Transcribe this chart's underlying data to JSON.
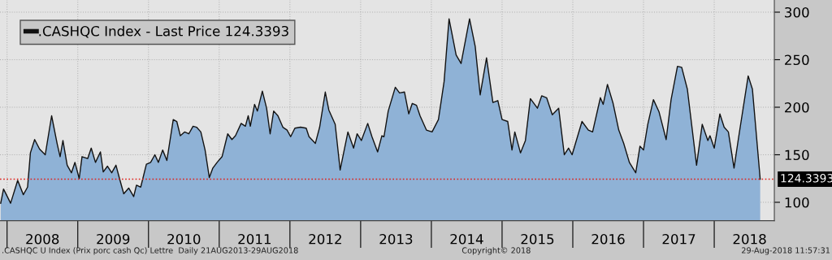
{
  "chart_data": {
    "type": "area",
    "x": [
      2007.91,
      2007.95,
      2008.05,
      2008.15,
      2008.23,
      2008.29,
      2008.33,
      2008.39,
      2008.46,
      2008.54,
      2008.63,
      2008.71,
      2008.75,
      2008.79,
      2008.85,
      2008.91,
      2008.96,
      2009.02,
      2009.06,
      2009.14,
      2009.19,
      2009.25,
      2009.32,
      2009.36,
      2009.42,
      2009.48,
      2009.54,
      2009.59,
      2009.65,
      2009.72,
      2009.79,
      2009.83,
      2009.89,
      2009.97,
      2010.03,
      2010.09,
      2010.14,
      2010.2,
      2010.26,
      2010.35,
      2010.4,
      2010.45,
      2010.51,
      2010.57,
      2010.63,
      2010.68,
      2010.74,
      2010.8,
      2010.86,
      2010.91,
      2010.97,
      2011.04,
      2011.12,
      2011.18,
      2011.23,
      2011.31,
      2011.37,
      2011.41,
      2011.44,
      2011.5,
      2011.54,
      2011.61,
      2011.67,
      2011.72,
      2011.77,
      2011.83,
      2011.9,
      2011.96,
      2012.01,
      2012.07,
      2012.15,
      2012.23,
      2012.27,
      2012.36,
      2012.42,
      2012.5,
      2012.55,
      2012.64,
      2012.71,
      2012.82,
      2012.9,
      2012.95,
      2013.01,
      2013.1,
      2013.16,
      2013.24,
      2013.3,
      2013.33,
      2013.39,
      2013.49,
      2013.55,
      2013.62,
      2013.68,
      2013.73,
      2013.79,
      2013.84,
      2013.93,
      2014.01,
      2014.1,
      2014.18,
      2014.25,
      2014.35,
      2014.42,
      2014.54,
      2014.62,
      2014.69,
      2014.78,
      2014.87,
      2014.94,
      2015.0,
      2015.08,
      2015.14,
      2015.18,
      2015.26,
      2015.33,
      2015.4,
      2015.5,
      2015.56,
      2015.63,
      2015.71,
      2015.8,
      2015.88,
      2015.94,
      2015.99,
      2016.13,
      2016.22,
      2016.28,
      2016.39,
      2016.43,
      2016.49,
      2016.57,
      2016.65,
      2016.72,
      2016.8,
      2016.89,
      2016.95,
      2017.0,
      2017.06,
      2017.14,
      2017.22,
      2017.32,
      2017.39,
      2017.48,
      2017.54,
      2017.62,
      2017.75,
      2017.83,
      2017.91,
      2017.94,
      2018.0,
      2018.08,
      2018.14,
      2018.2,
      2018.28,
      2018.34,
      2018.48,
      2018.54,
      2018.65
    ],
    "series": [
      {
        "name": ".CASHQC Index - Last Price 124.3393",
        "color": "#8fb2d6",
        "values": [
          99,
          114,
          99,
          123,
          108,
          116,
          152,
          166,
          156,
          150,
          191,
          161,
          148,
          165,
          139,
          131,
          142,
          125,
          148,
          146,
          157,
          142,
          153,
          132,
          138,
          131,
          139,
          125,
          109,
          115,
          106,
          118,
          116,
          140,
          142,
          150,
          142,
          155,
          144,
          187,
          185,
          170,
          174,
          172,
          180,
          179,
          174,
          155,
          126,
          136,
          142,
          148,
          172,
          166,
          170,
          183,
          180,
          191,
          180,
          203,
          196,
          217,
          199,
          172,
          196,
          191,
          179,
          176,
          169,
          178,
          179,
          178,
          169,
          162,
          179,
          216,
          197,
          182,
          134,
          174,
          157,
          172,
          165,
          183,
          169,
          153,
          170,
          169,
          196,
          221,
          215,
          216,
          193,
          204,
          202,
          191,
          176,
          174,
          187,
          227,
          293,
          255,
          246,
          293,
          264,
          213,
          252,
          205,
          207,
          187,
          185,
          155,
          174,
          152,
          165,
          209,
          199,
          212,
          210,
          192,
          199,
          150,
          157,
          150,
          185,
          176,
          174,
          210,
          203,
          224,
          204,
          176,
          162,
          142,
          131,
          159,
          155,
          182,
          208,
          195,
          166,
          208,
          243,
          242,
          219,
          139,
          182,
          165,
          170,
          157,
          193,
          179,
          174,
          136,
          166,
          233,
          219,
          124.3393
        ]
      }
    ],
    "xlim": [
      2007.9,
      2018.85
    ],
    "xticks": [
      {
        "value": 2008,
        "label": null
      },
      {
        "value": 2008.5,
        "label": "2008"
      },
      {
        "value": 2009,
        "label": null
      },
      {
        "value": 2009.5,
        "label": "2009"
      },
      {
        "value": 2010,
        "label": null
      },
      {
        "value": 2010.5,
        "label": "2010"
      },
      {
        "value": 2011,
        "label": null
      },
      {
        "value": 2011.5,
        "label": "2011"
      },
      {
        "value": 2012,
        "label": null
      },
      {
        "value": 2012.5,
        "label": "2012"
      },
      {
        "value": 2013,
        "label": null
      },
      {
        "value": 2013.5,
        "label": "2013"
      },
      {
        "value": 2014,
        "label": null
      },
      {
        "value": 2014.5,
        "label": "2014"
      },
      {
        "value": 2015,
        "label": null
      },
      {
        "value": 2015.5,
        "label": "2015"
      },
      {
        "value": 2016,
        "label": null
      },
      {
        "value": 2016.5,
        "label": "2016"
      },
      {
        "value": 2017,
        "label": null
      },
      {
        "value": 2017.5,
        "label": "2017"
      },
      {
        "value": 2018,
        "label": null
      },
      {
        "value": 2018.5,
        "label": "2018"
      }
    ],
    "ylim": [
      80.6,
      312.8
    ],
    "yticks": [
      100,
      150,
      200,
      250,
      300
    ],
    "grid": true,
    "legend": "top left",
    "ref_lines": [
      {
        "axis": "y",
        "value": 124.3393,
        "label": "124.3393",
        "color": "#e0201b",
        "line_style": "dotted"
      }
    ],
    "annotations": [
      ".CASHQC U Index (Prix porc cash Qc) Lettre  Daily 21AUG2013-29AUG2018",
      "Copyright© 2018",
      "29-Aug-2018 11:57:31"
    ]
  }
}
